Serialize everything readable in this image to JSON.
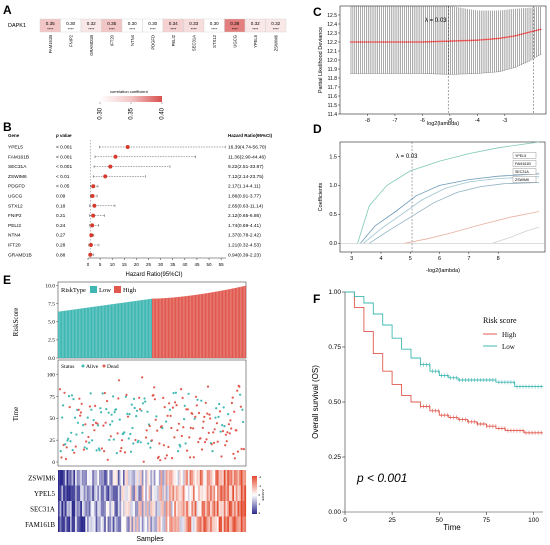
{
  "panels": {
    "A": "A",
    "B": "B",
    "C": "C",
    "D": "D",
    "E": "E",
    "F": "F"
  },
  "colors": {
    "high": "#e0584e",
    "low": "#3fb7b2",
    "heat_low": "#2c2a8c",
    "heat_high": "#e34a2e",
    "forest_point": "#d63a2c",
    "cv_point": "#e13c3c"
  },
  "chart_data": [
    {
      "panel": "A",
      "type": "heatmap",
      "row_label": "DAPK1",
      "genes": [
        "FAM161B",
        "FNIP2",
        "GRAMD1B",
        "IFT20",
        "NTN4",
        "PDGFD",
        "PELI2",
        "SEC31A",
        "STX12",
        "UGCG",
        "YPEL5",
        "ZSWIM6"
      ],
      "values": [
        "0.35",
        "0.30",
        "0.32",
        "0.35",
        "0.30",
        "0.30",
        "0.34",
        "0.33",
        "0.30",
        "0.38",
        "0.32",
        "0.32"
      ],
      "stars": "****",
      "legend_title": "correlation coefficient",
      "legend_ticks": [
        "0.30",
        "0.35",
        "0.40"
      ],
      "legend_range": [
        0.3,
        0.4
      ]
    },
    {
      "panel": "B",
      "type": "forest",
      "headers": {
        "gene": "Gene",
        "p": "p value",
        "hr": "Hazard Ratio(95%CI)"
      },
      "xlabel": "Hazard Ratio(95%CI)",
      "xticks": [
        "0",
        "5",
        "10",
        "15",
        "20",
        "25",
        "30",
        "35",
        "40",
        "45",
        "50",
        "55"
      ],
      "xlim": [
        0,
        57
      ],
      "rows": [
        {
          "gene": "YPEL5",
          "p": "< 0.001",
          "hr_text": "16.39(4.74-56.70)",
          "hr": 16.39,
          "lo": 4.74,
          "hi": 56.7
        },
        {
          "gene": "FAM161B",
          "p": "< 0.001",
          "hr_text": "11.36(2.90-44.46)",
          "hr": 11.36,
          "lo": 2.9,
          "hi": 44.46
        },
        {
          "gene": "SEC31A",
          "p": "< 0.001",
          "hr_text": "9.22(2.51-33.87)",
          "hr": 9.22,
          "lo": 2.51,
          "hi": 33.87
        },
        {
          "gene": "ZSWIM6",
          "p": "< 0.01",
          "hr_text": "7.12(2.14-23.75)",
          "hr": 7.12,
          "lo": 2.14,
          "hi": 23.75
        },
        {
          "gene": "PDGFD",
          "p": "< 0.05",
          "hr_text": "2.17(1.14-4.11)",
          "hr": 2.17,
          "lo": 1.14,
          "hi": 4.11
        },
        {
          "gene": "UGCG",
          "p": "0.09",
          "hr_text": "1.86(0.91-3.77)",
          "hr": 1.86,
          "lo": 0.91,
          "hi": 3.77
        },
        {
          "gene": "STX12",
          "p": "0.18",
          "hr_text": "2.65(0.63-11.14)",
          "hr": 2.65,
          "lo": 0.63,
          "hi": 11.14
        },
        {
          "gene": "FNIP2",
          "p": "0.21",
          "hr_text": "2.12(0.65-6.86)",
          "hr": 2.12,
          "lo": 0.65,
          "hi": 6.86
        },
        {
          "gene": "PELI2",
          "p": "0.24",
          "hr_text": "1.74(0.69-4.41)",
          "hr": 1.74,
          "lo": 0.69,
          "hi": 4.41
        },
        {
          "gene": "NTN4",
          "p": "0.27",
          "hr_text": "1.37(0.78-2.42)",
          "hr": 1.37,
          "lo": 0.78,
          "hi": 2.42
        },
        {
          "gene": "IFT20",
          "p": "0.28",
          "hr_text": "1.21(0.32-4.53)",
          "hr": 1.21,
          "lo": 0.32,
          "hi": 4.53
        },
        {
          "gene": "GRAMD1B",
          "p": "0.88",
          "hr_text": "0.94(0.39-2.23)",
          "hr": 0.94,
          "lo": 0.39,
          "hi": 2.23
        }
      ]
    },
    {
      "panel": "C",
      "type": "line",
      "xlabel": "log2(lambda)",
      "ylabel": "Partial Likelihood Deviance",
      "annotation": "λ = 0.03",
      "xlim": [
        -9,
        -1.5
      ],
      "ylim": [
        11.4,
        12.6
      ],
      "xticks": [
        "-8",
        "-7",
        "-6",
        "-5",
        "-4",
        "-3"
      ],
      "yticks": [
        "11.4",
        "11.5",
        "11.6",
        "11.7",
        "11.8",
        "11.9",
        "12.0",
        "12.1",
        "12.2",
        "12.3",
        "12.4",
        "12.5"
      ],
      "lambda_min": -5.06,
      "lambda_1se": -1.95,
      "cv_range": [
        -8.6,
        -1.7
      ],
      "cv_mean": [
        12.2,
        12.2,
        12.21,
        12.22,
        12.24,
        12.27,
        12.31,
        12.34
      ],
      "cv_mean_x": [
        -8.6,
        -6.0,
        -5.0,
        -4.0,
        -3.2,
        -2.6,
        -2.1,
        -1.7
      ],
      "cv_upper": [
        12.6,
        12.6,
        12.6,
        12.55,
        12.55,
        12.57,
        12.58,
        12.59
      ],
      "cv_lower": [
        11.85,
        11.85,
        11.84,
        11.85,
        11.87,
        11.92,
        11.99,
        12.06
      ]
    },
    {
      "panel": "D",
      "type": "line",
      "xlabel": "-log2(lambda)",
      "ylabel": "Coefficients",
      "annotation": "λ = 0.03",
      "xlim": [
        2.6,
        9.6
      ],
      "ylim": [
        -0.15,
        1.75
      ],
      "xticks": [
        "3",
        "4",
        "5",
        "6",
        "7",
        "8"
      ],
      "yticks": [
        "0.0",
        "0.5",
        "1.0",
        "1.5"
      ],
      "lambda_line": 5.06,
      "legend": [
        "YPEL5",
        "FAM161B",
        "SEC31A",
        "ZSWIM6"
      ],
      "series": [
        {
          "name": "YPEL5",
          "x": [
            3.2,
            3.6,
            4.2,
            5.0,
            6.0,
            7.0,
            8.0,
            9.4
          ],
          "y": [
            0.0,
            0.65,
            1.0,
            1.25,
            1.42,
            1.55,
            1.65,
            1.75
          ],
          "color": "#7fc8b8"
        },
        {
          "name": "FAM161B",
          "x": [
            3.3,
            3.8,
            4.5,
            5.2,
            6.0,
            7.0,
            8.0,
            9.4
          ],
          "y": [
            0.0,
            0.3,
            0.55,
            0.82,
            1.0,
            1.1,
            1.16,
            1.2
          ],
          "color": "#6d9ab8"
        },
        {
          "name": "SEC31A",
          "x": [
            3.4,
            4.0,
            4.7,
            5.4,
            6.2,
            7.0,
            8.0,
            9.4
          ],
          "y": [
            0.0,
            0.25,
            0.5,
            0.75,
            0.95,
            1.06,
            1.12,
            1.15
          ],
          "color": "#9ec4d0"
        },
        {
          "name": "ZSWIM6",
          "x": [
            3.6,
            4.2,
            5.0,
            5.8,
            6.6,
            7.4,
            8.2,
            9.4
          ],
          "y": [
            0.0,
            0.2,
            0.45,
            0.7,
            0.88,
            0.98,
            1.03,
            1.05
          ],
          "color": "#8fb0c0"
        },
        {
          "name": "",
          "x": [
            4.8,
            5.6,
            6.4,
            7.4,
            8.4,
            9.4
          ],
          "y": [
            0.0,
            0.08,
            0.18,
            0.32,
            0.45,
            0.55
          ],
          "color": "#e8b0a0"
        },
        {
          "name": "",
          "x": [
            7.8,
            8.4,
            9.0,
            9.4
          ],
          "y": [
            0.0,
            0.1,
            0.22,
            0.28
          ],
          "color": "#d0d0d0"
        }
      ]
    },
    {
      "panel": "E",
      "type": "scatter",
      "riskscore_label": "RiskScore",
      "time_label": "Time",
      "samples_label": "Samples",
      "risk_legend_title": "RiskType",
      "risk_legend": [
        "Low",
        "High"
      ],
      "status_legend_title": "Status",
      "status_legend": [
        "Alive",
        "Dead"
      ],
      "riskscore_yticks": [
        "0.0",
        "2.5",
        "5.0",
        "7.5",
        "10.0"
      ],
      "time_yticks": [
        "0",
        "25",
        "50",
        "75",
        "100"
      ],
      "heatmap_genes": [
        "ZSWIM6",
        "YPEL5",
        "SEC31A",
        "FAM161B"
      ],
      "heatmap_legend_title": "z-score",
      "heatmap_legend_ticks": [
        "-2",
        "-1",
        "0",
        "1",
        "2"
      ],
      "n_low": 160,
      "n_high": 160,
      "riskscore_low": [
        6.4,
        8.2
      ],
      "riskscore_high": [
        8.2,
        10.0
      ]
    },
    {
      "panel": "F",
      "type": "line",
      "xlabel": "Time",
      "ylabel": "Overall survival (OS)",
      "legend_title": "Risk score",
      "legend": [
        "High",
        "Low"
      ],
      "annotation": "p < 0.001",
      "xlim": [
        0,
        105
      ],
      "ylim": [
        0,
        1.0
      ],
      "xticks": [
        "0",
        "25",
        "50",
        "75",
        "100"
      ],
      "yticks": [
        "0.00",
        "0.25",
        "0.50",
        "0.75",
        "1.00"
      ],
      "series": [
        {
          "name": "High",
          "x": [
            0,
            5,
            10,
            15,
            20,
            25,
            30,
            35,
            40,
            45,
            50,
            55,
            60,
            65,
            70,
            75,
            80,
            85,
            90,
            95,
            100,
            105
          ],
          "y": [
            1.0,
            0.93,
            0.82,
            0.72,
            0.64,
            0.58,
            0.53,
            0.5,
            0.48,
            0.46,
            0.44,
            0.43,
            0.42,
            0.41,
            0.4,
            0.39,
            0.38,
            0.37,
            0.37,
            0.36,
            0.36,
            0.36
          ]
        },
        {
          "name": "Low",
          "x": [
            0,
            5,
            10,
            15,
            20,
            25,
            30,
            35,
            40,
            45,
            50,
            55,
            60,
            65,
            70,
            75,
            80,
            85,
            90,
            95,
            100,
            105
          ],
          "y": [
            1.0,
            0.98,
            0.95,
            0.9,
            0.85,
            0.79,
            0.74,
            0.7,
            0.67,
            0.64,
            0.62,
            0.61,
            0.6,
            0.6,
            0.6,
            0.6,
            0.59,
            0.59,
            0.57,
            0.57,
            0.57,
            0.57
          ]
        }
      ]
    }
  ]
}
